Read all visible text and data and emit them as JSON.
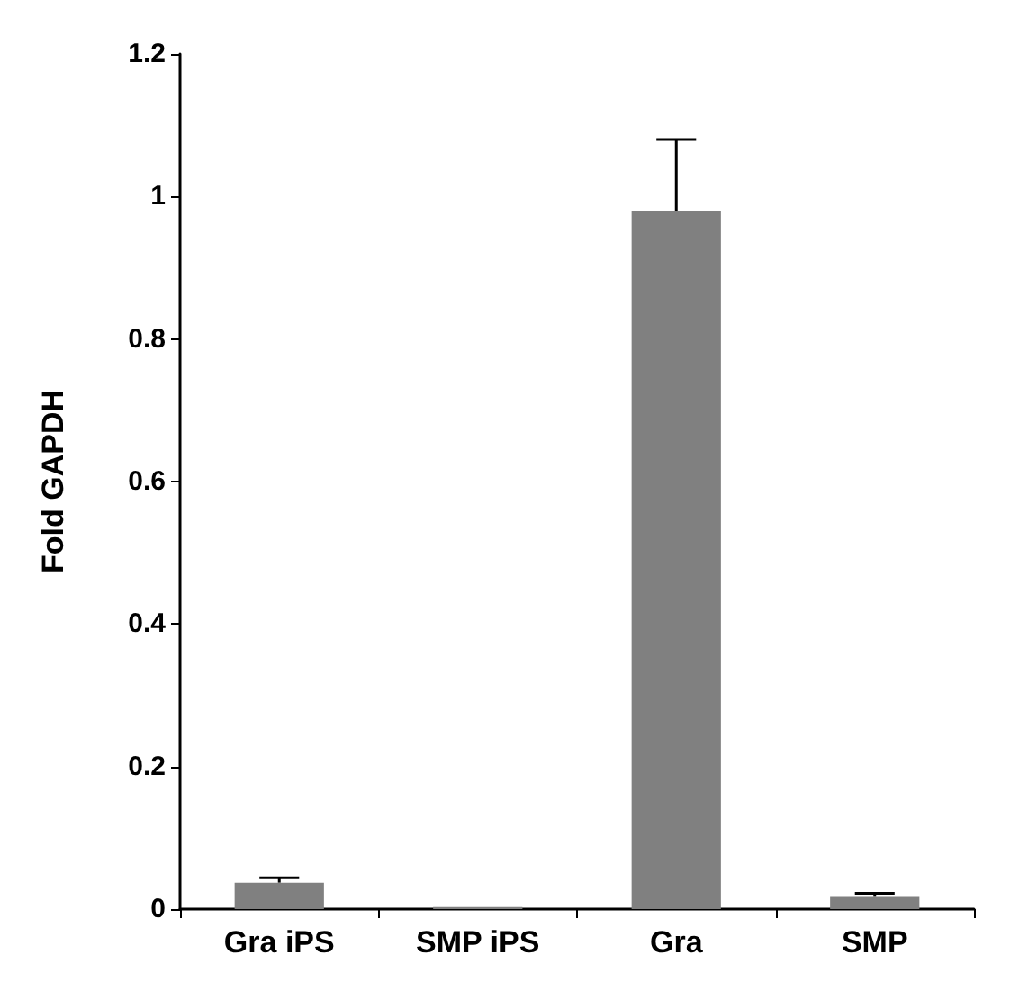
{
  "chart_data": {
    "type": "bar",
    "ylabel": "Fold GAPDH",
    "categories": [
      "Gra iPS",
      "SMP iPS",
      "Gra",
      "SMP"
    ],
    "values": [
      0.037,
      0.003,
      0.98,
      0.017
    ],
    "errors": [
      [
        0.037,
        0.044
      ],
      null,
      [
        0.98,
        1.08
      ],
      [
        0.017,
        0.022
      ]
    ],
    "color": "#808080",
    "ylim": [
      0,
      1.2
    ],
    "yticks": [
      0,
      0.2,
      0.4,
      0.6,
      0.8,
      1,
      1.2
    ],
    "grid": false
  }
}
